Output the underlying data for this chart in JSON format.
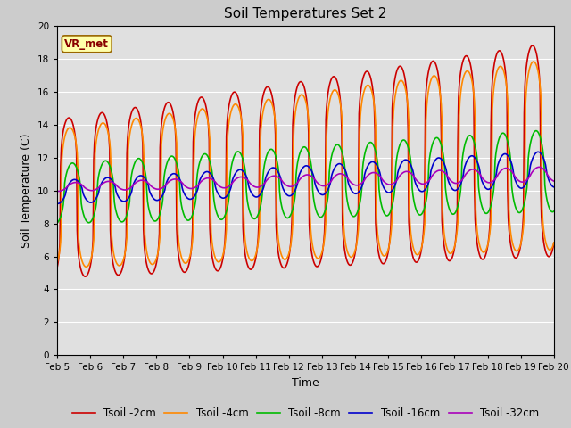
{
  "title": "Soil Temperatures Set 2",
  "xlabel": "Time",
  "ylabel": "Soil Temperature (C)",
  "ylim": [
    0,
    20
  ],
  "xlim_days": [
    5,
    20
  ],
  "xtick_labels": [
    "Feb 5",
    "Feb 6",
    "Feb 7",
    "Feb 8",
    "Feb 9",
    "Feb 10",
    "Feb 11",
    "Feb 12",
    "Feb 13",
    "Feb 14",
    "Feb 15",
    "Feb 16",
    "Feb 17",
    "Feb 18",
    "Feb 19",
    "Feb 20"
  ],
  "annotation_text": "VR_met",
  "bg_color": "#cccccc",
  "plot_bg_color": "#e0e0e0",
  "series": [
    {
      "label": "Tsoil -2cm",
      "color": "#cc0000",
      "lw": 1.2
    },
    {
      "label": "Tsoil -4cm",
      "color": "#ff8800",
      "lw": 1.2
    },
    {
      "label": "Tsoil -8cm",
      "color": "#00bb00",
      "lw": 1.2
    },
    {
      "label": "Tsoil -16cm",
      "color": "#0000cc",
      "lw": 1.2
    },
    {
      "label": "Tsoil -32cm",
      "color": "#aa00bb",
      "lw": 1.2
    }
  ],
  "title_fontsize": 11,
  "label_fontsize": 9,
  "tick_fontsize": 7.5,
  "legend_fontsize": 8.5
}
